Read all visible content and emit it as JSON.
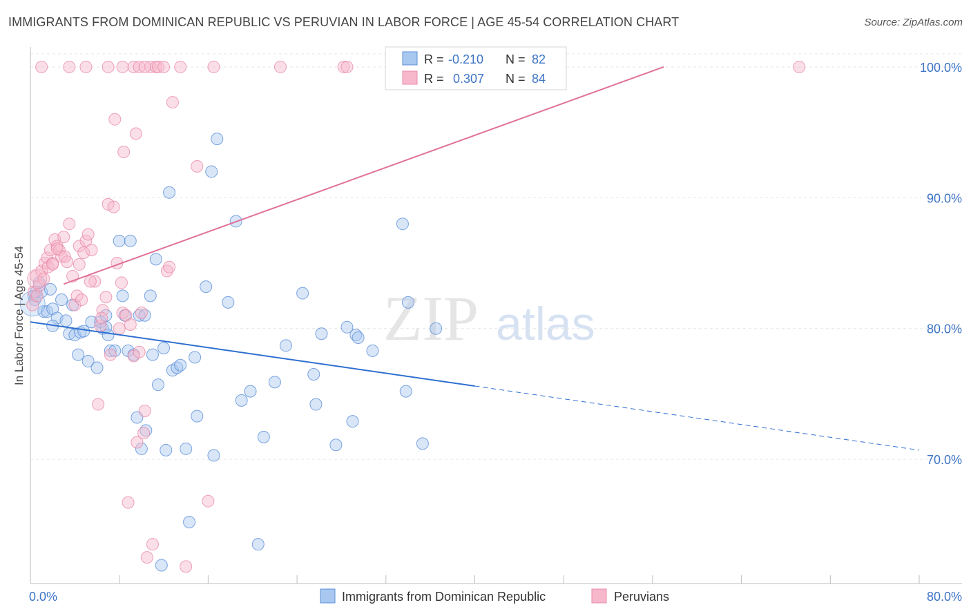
{
  "title": "IMMIGRANTS FROM DOMINICAN REPUBLIC VS PERUVIAN IN LABOR FORCE | AGE 45-54 CORRELATION CHART",
  "source": "Source: ZipAtlas.com",
  "watermark": {
    "zip": "ZIP",
    "atlas": "atlas"
  },
  "colors": {
    "blue_fill": "#a9c8f0",
    "blue_stroke": "#5b8fd8",
    "blue_line": "#2f6fd0",
    "pink_fill": "#f7b8cc",
    "pink_stroke": "#e88aa8",
    "pink_line": "#e0709a",
    "axis_label": "#3d74c5",
    "grid": "#e6e6e6"
  },
  "stats": [
    {
      "r_label": "R =",
      "r_value": "-0.210",
      "n_label": "N =",
      "n_value": "82"
    },
    {
      "r_label": "R =",
      "r_value": "0.307",
      "n_label": "N =",
      "n_value": "84"
    }
  ],
  "chart_data": {
    "type": "scatter",
    "xlabel": "",
    "ylabel": "In Labor Force | Age 45-54",
    "xlim": [
      0,
      80
    ],
    "ylim": [
      60.5,
      101
    ],
    "x_tick_labels": [
      "0.0%",
      "80.0%"
    ],
    "y_ticks": [
      70,
      80,
      90,
      100
    ],
    "y_tick_labels": [
      "70.0%",
      "80.0%",
      "90.0%",
      "100.0%"
    ],
    "legend": [
      "Immigrants from Dominican Republic",
      "Peruvians"
    ],
    "series": [
      {
        "name": "Immigrants from Dominican Republic",
        "color": "#5b8fd8",
        "trend": {
          "x": [
            0,
            40
          ],
          "y": [
            80.5,
            75.6
          ],
          "dashed_to": [
            80,
            70.7
          ]
        },
        "points": [
          [
            0.3,
            82.5
          ],
          [
            0.4,
            82.2
          ],
          [
            0.5,
            82.8
          ],
          [
            0.8,
            83.5
          ],
          [
            1.0,
            82.8
          ],
          [
            1.2,
            81.3
          ],
          [
            1.5,
            81.3
          ],
          [
            1.8,
            83.0
          ],
          [
            2.0,
            81.5
          ],
          [
            2.4,
            80.8
          ],
          [
            2.8,
            82.2
          ],
          [
            3.2,
            80.6
          ],
          [
            3.5,
            79.6
          ],
          [
            3.8,
            81.8
          ],
          [
            4.0,
            79.5
          ],
          [
            4.3,
            78.0
          ],
          [
            4.5,
            79.7
          ],
          [
            4.8,
            79.8
          ],
          [
            5.2,
            77.5
          ],
          [
            5.5,
            80.5
          ],
          [
            6.0,
            77.0
          ],
          [
            6.3,
            80.5
          ],
          [
            6.5,
            80.0
          ],
          [
            6.8,
            81.0
          ],
          [
            7.0,
            79.5
          ],
          [
            7.2,
            78.3
          ],
          [
            7.6,
            78.3
          ],
          [
            8.0,
            86.7
          ],
          [
            8.3,
            82.5
          ],
          [
            8.5,
            81.0
          ],
          [
            8.8,
            78.3
          ],
          [
            9.0,
            86.7
          ],
          [
            9.3,
            78.0
          ],
          [
            9.6,
            73.2
          ],
          [
            9.8,
            81.0
          ],
          [
            10.0,
            70.8
          ],
          [
            10.4,
            72.2
          ],
          [
            10.8,
            82.5
          ],
          [
            11.0,
            78.0
          ],
          [
            11.3,
            85.3
          ],
          [
            11.5,
            75.7
          ],
          [
            11.8,
            61.9
          ],
          [
            12.0,
            78.5
          ],
          [
            12.2,
            70.7
          ],
          [
            12.5,
            90.4
          ],
          [
            12.8,
            76.8
          ],
          [
            13.2,
            77.0
          ],
          [
            13.5,
            77.2
          ],
          [
            14.0,
            70.8
          ],
          [
            14.3,
            65.2
          ],
          [
            14.8,
            77.8
          ],
          [
            15.0,
            73.3
          ],
          [
            15.8,
            83.2
          ],
          [
            16.3,
            92.0
          ],
          [
            16.5,
            70.3
          ],
          [
            16.8,
            94.5
          ],
          [
            17.8,
            82.0
          ],
          [
            18.5,
            88.2
          ],
          [
            19.0,
            74.5
          ],
          [
            19.8,
            75.2
          ],
          [
            20.5,
            63.5
          ],
          [
            21.0,
            71.7
          ],
          [
            22.0,
            75.9
          ],
          [
            23.0,
            78.7
          ],
          [
            24.5,
            82.7
          ],
          [
            25.5,
            76.5
          ],
          [
            25.7,
            74.2
          ],
          [
            26.2,
            79.6
          ],
          [
            27.5,
            71.1
          ],
          [
            28.5,
            80.1
          ],
          [
            29.0,
            72.9
          ],
          [
            29.3,
            79.5
          ],
          [
            29.5,
            79.3
          ],
          [
            30.8,
            78.3
          ],
          [
            33.8,
            75.2
          ],
          [
            33.5,
            88.0
          ],
          [
            34.0,
            82.0
          ],
          [
            35.3,
            71.2
          ],
          [
            36.5,
            80.0
          ],
          [
            2.0,
            80.2
          ],
          [
            6.8,
            80.1
          ],
          [
            10.3,
            81.0
          ]
        ]
      },
      {
        "name": "Peruvians",
        "color": "#e88aa8",
        "trend": {
          "x": [
            3,
            57
          ],
          "y": [
            83.4,
            100
          ]
        },
        "points": [
          [
            0.2,
            81.8
          ],
          [
            0.3,
            82.8
          ],
          [
            0.5,
            84.0
          ],
          [
            0.6,
            82.5
          ],
          [
            0.8,
            83.3
          ],
          [
            1.0,
            84.4
          ],
          [
            1.2,
            83.8
          ],
          [
            1.3,
            85.0
          ],
          [
            1.5,
            85.4
          ],
          [
            1.6,
            84.7
          ],
          [
            1.8,
            86.0
          ],
          [
            2.0,
            85.0
          ],
          [
            2.2,
            86.8
          ],
          [
            2.4,
            86.3
          ],
          [
            2.6,
            86.0
          ],
          [
            2.8,
            85.5
          ],
          [
            3.0,
            87.0
          ],
          [
            3.3,
            85.1
          ],
          [
            3.5,
            88.0
          ],
          [
            3.8,
            84.0
          ],
          [
            4.0,
            81.8
          ],
          [
            4.2,
            82.5
          ],
          [
            4.4,
            86.3
          ],
          [
            4.6,
            82.2
          ],
          [
            4.8,
            85.8
          ],
          [
            5.0,
            86.7
          ],
          [
            5.2,
            87.2
          ],
          [
            5.5,
            86.0
          ],
          [
            5.8,
            83.6
          ],
          [
            6.1,
            74.2
          ],
          [
            6.3,
            80.2
          ],
          [
            6.5,
            81.4
          ],
          [
            6.8,
            82.4
          ],
          [
            7.0,
            89.5
          ],
          [
            7.2,
            78.0
          ],
          [
            7.5,
            89.3
          ],
          [
            7.6,
            96.0
          ],
          [
            7.8,
            85.0
          ],
          [
            8.0,
            80.0
          ],
          [
            8.2,
            83.5
          ],
          [
            8.3,
            81.2
          ],
          [
            8.4,
            93.5
          ],
          [
            8.6,
            81.0
          ],
          [
            8.8,
            66.7
          ],
          [
            9.0,
            80.3
          ],
          [
            9.3,
            77.9
          ],
          [
            9.5,
            94.9
          ],
          [
            9.6,
            71.3
          ],
          [
            9.8,
            78.2
          ],
          [
            10.0,
            81.2
          ],
          [
            10.2,
            72.0
          ],
          [
            10.3,
            73.7
          ],
          [
            10.5,
            62.5
          ],
          [
            10.8,
            100.0
          ],
          [
            11.0,
            63.5
          ],
          [
            11.3,
            100.0
          ],
          [
            11.5,
            100.0
          ],
          [
            12.0,
            100.0
          ],
          [
            12.3,
            84.4
          ],
          [
            12.5,
            84.7
          ],
          [
            12.8,
            97.3
          ],
          [
            13.5,
            100.0
          ],
          [
            14.0,
            61.8
          ],
          [
            15.0,
            92.4
          ],
          [
            16.0,
            66.8
          ],
          [
            16.5,
            100.0
          ],
          [
            22.5,
            100.0
          ],
          [
            28.2,
            100.0
          ],
          [
            28.5,
            100.0
          ],
          [
            1.0,
            100.0
          ],
          [
            3.5,
            100.0
          ],
          [
            5.0,
            100.0
          ],
          [
            7.0,
            100.0
          ],
          [
            8.3,
            100.0
          ],
          [
            9.3,
            100.0
          ],
          [
            9.8,
            100.0
          ],
          [
            10.3,
            100.0
          ],
          [
            2.4,
            86.1
          ],
          [
            3.1,
            85.5
          ],
          [
            2.0,
            84.9
          ],
          [
            4.4,
            84.9
          ],
          [
            5.4,
            83.6
          ],
          [
            6.4,
            80.8
          ],
          [
            69.2,
            100.0
          ]
        ]
      }
    ]
  }
}
